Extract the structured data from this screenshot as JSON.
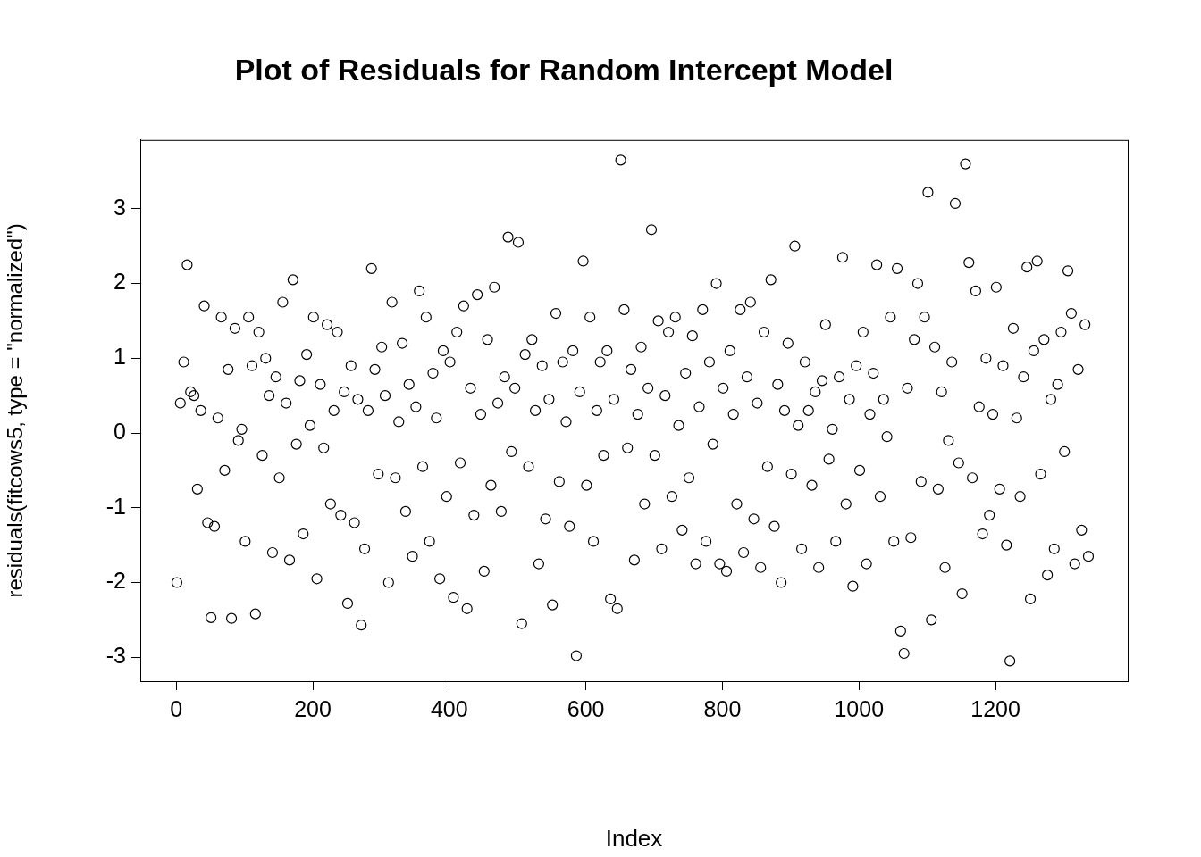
{
  "chart_data": {
    "type": "scatter",
    "title": "Plot of Residuals for Random Intercept Model",
    "x_label": "Index",
    "y_label": "residuals(fitcows5, type = \"normalized\")",
    "marker": "circle",
    "color": "#000000",
    "grid": false,
    "xlim": [
      -52.6,
      1393.6
    ],
    "ylim": [
      -3.32,
      3.92
    ],
    "xticks": [
      0,
      200,
      400,
      600,
      800,
      1000,
      1200
    ],
    "yticks": [
      -3,
      -2,
      -1,
      0,
      1,
      2,
      3
    ],
    "x": [
      1,
      6,
      11,
      16,
      21,
      26,
      31,
      36,
      41,
      46,
      51,
      56,
      61,
      66,
      71,
      76,
      81,
      86,
      91,
      96,
      101,
      106,
      111,
      116,
      121,
      126,
      131,
      136,
      141,
      146,
      151,
      156,
      161,
      166,
      171,
      176,
      181,
      186,
      191,
      196,
      201,
      206,
      211,
      216,
      221,
      226,
      231,
      236,
      241,
      246,
      251,
      256,
      261,
      266,
      271,
      276,
      281,
      286,
      291,
      296,
      301,
      306,
      311,
      316,
      321,
      326,
      331,
      336,
      341,
      346,
      351,
      356,
      361,
      366,
      371,
      376,
      381,
      386,
      391,
      396,
      401,
      406,
      411,
      416,
      421,
      426,
      431,
      436,
      441,
      446,
      451,
      456,
      461,
      466,
      471,
      476,
      481,
      486,
      491,
      496,
      501,
      506,
      511,
      516,
      521,
      526,
      531,
      536,
      541,
      546,
      551,
      556,
      561,
      566,
      571,
      576,
      581,
      586,
      591,
      596,
      601,
      606,
      611,
      616,
      621,
      626,
      631,
      636,
      641,
      646,
      651,
      656,
      661,
      666,
      671,
      676,
      681,
      686,
      691,
      696,
      701,
      706,
      711,
      716,
      721,
      726,
      731,
      736,
      741,
      746,
      751,
      756,
      761,
      766,
      771,
      776,
      781,
      786,
      791,
      796,
      801,
      806,
      811,
      816,
      821,
      826,
      831,
      836,
      841,
      846,
      851,
      856,
      861,
      866,
      871,
      876,
      881,
      886,
      891,
      896,
      901,
      906,
      911,
      916,
      921,
      926,
      931,
      936,
      941,
      946,
      951,
      956,
      961,
      966,
      971,
      976,
      981,
      986,
      991,
      996,
      1001,
      1006,
      1011,
      1016,
      1021,
      1026,
      1031,
      1036,
      1041,
      1046,
      1051,
      1056,
      1061,
      1066,
      1071,
      1076,
      1081,
      1086,
      1091,
      1096,
      1101,
      1106,
      1111,
      1116,
      1121,
      1126,
      1131,
      1136,
      1141,
      1146,
      1151,
      1156,
      1161,
      1166,
      1171,
      1176,
      1181,
      1186,
      1191,
      1196,
      1201,
      1206,
      1211,
      1216,
      1221,
      1226,
      1231,
      1236,
      1241,
      1246,
      1251,
      1256,
      1261,
      1266,
      1271,
      1276,
      1281,
      1286,
      1291,
      1296,
      1301,
      1306,
      1311,
      1316,
      1321,
      1326,
      1331,
      1336
    ],
    "values": [
      -2.0,
      0.4,
      0.95,
      2.25,
      0.55,
      0.5,
      -0.75,
      0.3,
      1.7,
      -1.2,
      -2.47,
      -1.25,
      0.2,
      1.55,
      -0.5,
      0.85,
      -2.48,
      1.4,
      -0.1,
      0.05,
      -1.45,
      1.55,
      0.9,
      -2.42,
      1.35,
      -0.3,
      1.0,
      0.5,
      -1.6,
      0.75,
      -0.6,
      1.75,
      0.4,
      -1.7,
      2.05,
      -0.15,
      0.7,
      -1.35,
      1.05,
      0.1,
      1.55,
      -1.95,
      0.65,
      -0.2,
      1.45,
      -0.95,
      0.3,
      1.35,
      -1.1,
      0.55,
      -2.28,
      0.9,
      -1.2,
      0.45,
      -2.57,
      -1.55,
      0.3,
      2.2,
      0.85,
      -0.55,
      1.15,
      0.5,
      -2.0,
      1.75,
      -0.6,
      0.15,
      1.2,
      -1.05,
      0.65,
      -1.65,
      0.35,
      1.9,
      -0.45,
      1.55,
      -1.45,
      0.8,
      0.2,
      -1.95,
      1.1,
      -0.85,
      0.95,
      -2.2,
      1.35,
      -0.4,
      1.7,
      -2.35,
      0.6,
      -1.1,
      1.85,
      0.25,
      -1.85,
      1.25,
      -0.7,
      1.95,
      0.4,
      -1.05,
      0.75,
      2.62,
      -0.25,
      0.6,
      2.55,
      -2.55,
      1.05,
      -0.45,
      1.25,
      0.3,
      -1.75,
      0.9,
      -1.15,
      0.45,
      -2.3,
      1.6,
      -0.65,
      0.95,
      0.15,
      -1.25,
      1.1,
      -2.98,
      0.55,
      2.3,
      -0.7,
      1.55,
      -1.45,
      0.3,
      0.95,
      -0.3,
      1.1,
      -2.22,
      0.45,
      -2.35,
      3.65,
      1.65,
      -0.2,
      0.85,
      -1.7,
      0.25,
      1.15,
      -0.95,
      0.6,
      2.72,
      -0.3,
      1.5,
      -1.55,
      0.5,
      1.35,
      -0.85,
      1.55,
      0.1,
      -1.3,
      0.8,
      -0.6,
      1.3,
      -1.75,
      0.35,
      1.65,
      -1.45,
      0.95,
      -0.15,
      2.0,
      -1.75,
      0.6,
      -1.85,
      1.1,
      0.25,
      -0.95,
      1.65,
      -1.6,
      0.75,
      1.75,
      -1.15,
      0.4,
      -1.8,
      1.35,
      -0.45,
      2.05,
      -1.25,
      0.65,
      -2.0,
      0.3,
      1.2,
      -0.55,
      2.5,
      0.1,
      -1.55,
      0.95,
      0.3,
      -0.7,
      0.55,
      -1.8,
      0.7,
      1.45,
      -0.35,
      0.05,
      -1.45,
      0.75,
      2.35,
      -0.95,
      0.45,
      -2.05,
      0.9,
      -0.5,
      1.35,
      -1.75,
      0.25,
      0.8,
      2.25,
      -0.85,
      0.45,
      -0.05,
      1.55,
      -1.45,
      2.2,
      -2.65,
      -2.95,
      0.6,
      -1.4,
      1.25,
      2.0,
      -0.65,
      1.55,
      3.22,
      -2.5,
      1.15,
      -0.75,
      0.55,
      -1.8,
      -0.1,
      0.95,
      3.07,
      -0.4,
      -2.15,
      3.6,
      2.28,
      -0.6,
      1.9,
      0.35,
      -1.35,
      1.0,
      -1.1,
      0.25,
      1.95,
      -0.75,
      0.9,
      -1.5,
      -3.05,
      1.4,
      0.2,
      -0.85,
      0.75,
      2.22,
      -2.22,
      1.1,
      2.3,
      -0.55,
      1.25,
      -1.9,
      0.45,
      -1.55,
      0.65,
      1.35,
      -0.25,
      2.17,
      1.6,
      -1.75,
      0.85,
      -1.3,
      1.45,
      -1.65
    ]
  }
}
